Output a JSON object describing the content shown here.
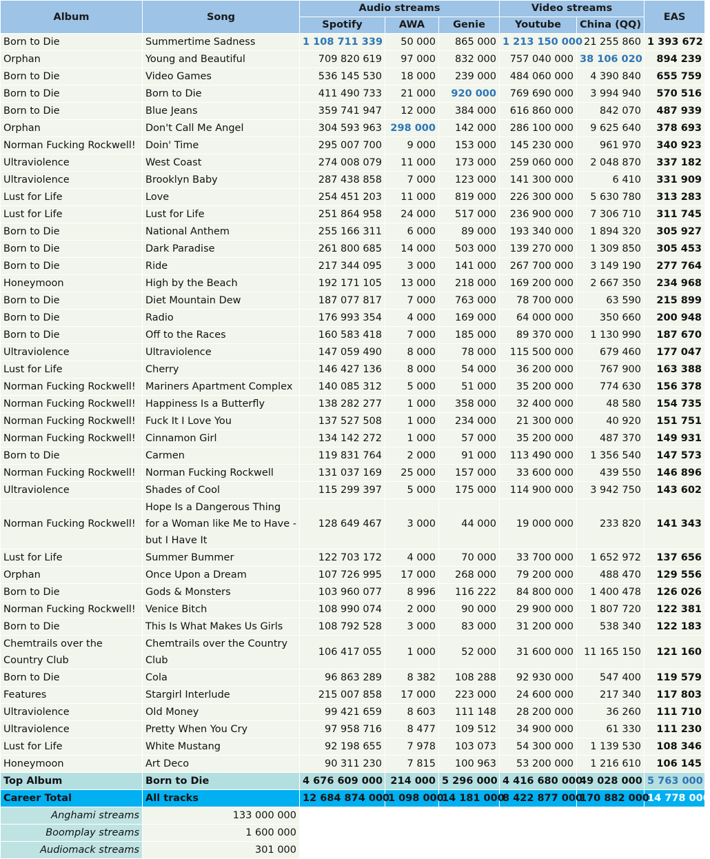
{
  "header": {
    "album": "Album",
    "song": "Song",
    "audio_streams": "Audio streams",
    "video_streams": "Video streams",
    "eas": "EAS",
    "spotify": "Spotify",
    "awa": "AWA",
    "genie": "Genie",
    "youtube": "Youtube",
    "china_qq": "China (QQ)"
  },
  "rows": [
    {
      "album": "Born to Die",
      "song": "Summertime Sadness",
      "spotify": "1 108 711 339",
      "awa": "50 000",
      "genie": "865 000",
      "youtube": "1 213 150 000",
      "qq": "21 255 860",
      "eas": "1 393 672",
      "hl": [
        "spotify",
        "youtube"
      ]
    },
    {
      "album": "Orphan",
      "song": "Young and Beautiful",
      "spotify": "709 820 619",
      "awa": "97 000",
      "genie": "832 000",
      "youtube": "757 040 000",
      "qq": "38 106 020",
      "eas": "894 239",
      "hl": [
        "qq"
      ]
    },
    {
      "album": "Born to Die",
      "song": "Video Games",
      "spotify": "536 145 530",
      "awa": "18 000",
      "genie": "239 000",
      "youtube": "484 060 000",
      "qq": "4 390 840",
      "eas": "655 759",
      "hl": []
    },
    {
      "album": "Born to Die",
      "song": "Born to Die",
      "spotify": "411 490 733",
      "awa": "21 000",
      "genie": "920 000",
      "youtube": "769 690 000",
      "qq": "3 994 940",
      "eas": "570 516",
      "hl": [
        "genie"
      ]
    },
    {
      "album": "Born to Die",
      "song": "Blue Jeans",
      "spotify": "359 741 947",
      "awa": "12 000",
      "genie": "384 000",
      "youtube": "616 860 000",
      "qq": "842 070",
      "eas": "487 939",
      "hl": []
    },
    {
      "album": "Orphan",
      "song": "Don't Call Me Angel",
      "spotify": "304 593 963",
      "awa": "298 000",
      "genie": "142 000",
      "youtube": "286 100 000",
      "qq": "9 625 640",
      "eas": "378 693",
      "hl": [
        "awa"
      ]
    },
    {
      "album": "Norman Fucking Rockwell!",
      "song": "Doin' Time",
      "spotify": "295 007 700",
      "awa": "9 000",
      "genie": "153 000",
      "youtube": "145 230 000",
      "qq": "961 970",
      "eas": "340 923",
      "hl": []
    },
    {
      "album": "Ultraviolence",
      "song": "West Coast",
      "spotify": "274 008 079",
      "awa": "11 000",
      "genie": "173 000",
      "youtube": "259 060 000",
      "qq": "2 048 870",
      "eas": "337 182",
      "hl": []
    },
    {
      "album": "Ultraviolence",
      "song": "Brooklyn Baby",
      "spotify": "287 438 858",
      "awa": "7 000",
      "genie": "123 000",
      "youtube": "141 300 000",
      "qq": "6 410",
      "eas": "331 909",
      "hl": []
    },
    {
      "album": "Lust for Life",
      "song": "Love",
      "spotify": "254 451 203",
      "awa": "11 000",
      "genie": "819 000",
      "youtube": "226 300 000",
      "qq": "5 630 780",
      "eas": "313 283",
      "hl": []
    },
    {
      "album": "Lust for Life",
      "song": "Lust for Life",
      "spotify": "251 864 958",
      "awa": "24 000",
      "genie": "517 000",
      "youtube": "236 900 000",
      "qq": "7 306 710",
      "eas": "311 745",
      "hl": []
    },
    {
      "album": "Born to Die",
      "song": "National Anthem",
      "spotify": "255 166 311",
      "awa": "6 000",
      "genie": "89 000",
      "youtube": "193 340 000",
      "qq": "1 894 320",
      "eas": "305 927",
      "hl": []
    },
    {
      "album": "Born to Die",
      "song": "Dark Paradise",
      "spotify": "261 800 685",
      "awa": "14 000",
      "genie": "503 000",
      "youtube": "139 270 000",
      "qq": "1 309 850",
      "eas": "305 453",
      "hl": []
    },
    {
      "album": "Born to Die",
      "song": "Ride",
      "spotify": "217 344 095",
      "awa": "3 000",
      "genie": "141 000",
      "youtube": "267 700 000",
      "qq": "3 149 190",
      "eas": "277 764",
      "hl": []
    },
    {
      "album": "Honeymoon",
      "song": "High by the Beach",
      "spotify": "192 171 105",
      "awa": "13 000",
      "genie": "218 000",
      "youtube": "169 200 000",
      "qq": "2 667 350",
      "eas": "234 968",
      "hl": []
    },
    {
      "album": "Born to Die",
      "song": "Diet Mountain Dew",
      "spotify": "187 077 817",
      "awa": "7 000",
      "genie": "763 000",
      "youtube": "78 700 000",
      "qq": "63 590",
      "eas": "215 899",
      "hl": []
    },
    {
      "album": "Born to Die",
      "song": "Radio",
      "spotify": "176 993 354",
      "awa": "4 000",
      "genie": "169 000",
      "youtube": "64 000 000",
      "qq": "350 660",
      "eas": "200 948",
      "hl": []
    },
    {
      "album": "Born to Die",
      "song": "Off to the Races",
      "spotify": "160 583 418",
      "awa": "7 000",
      "genie": "185 000",
      "youtube": "89 370 000",
      "qq": "1 130 990",
      "eas": "187 670",
      "hl": []
    },
    {
      "album": "Ultraviolence",
      "song": "Ultraviolence",
      "spotify": "147 059 490",
      "awa": "8 000",
      "genie": "78 000",
      "youtube": "115 500 000",
      "qq": "679 460",
      "eas": "177 047",
      "hl": []
    },
    {
      "album": "Lust for Life",
      "song": "Cherry",
      "spotify": "146 427 136",
      "awa": "8 000",
      "genie": "54 000",
      "youtube": "36 200 000",
      "qq": "767 900",
      "eas": "163 388",
      "hl": []
    },
    {
      "album": "Norman Fucking Rockwell!",
      "song": "Mariners Apartment Complex",
      "spotify": "140 085 312",
      "awa": "5 000",
      "genie": "51 000",
      "youtube": "35 200 000",
      "qq": "774 630",
      "eas": "156 378",
      "hl": []
    },
    {
      "album": "Norman Fucking Rockwell!",
      "song": "Happiness Is a Butterfly",
      "spotify": "138 282 277",
      "awa": "1 000",
      "genie": "358 000",
      "youtube": "32 400 000",
      "qq": "48 580",
      "eas": "154 735",
      "hl": []
    },
    {
      "album": "Norman Fucking Rockwell!",
      "song": "Fuck It I Love You",
      "spotify": "137 527 508",
      "awa": "1 000",
      "genie": "234 000",
      "youtube": "21 300 000",
      "qq": "40 920",
      "eas": "151 751",
      "hl": []
    },
    {
      "album": "Norman Fucking Rockwell!",
      "song": "Cinnamon Girl",
      "spotify": "134 142 272",
      "awa": "1 000",
      "genie": "57 000",
      "youtube": "35 200 000",
      "qq": "487 370",
      "eas": "149 931",
      "hl": []
    },
    {
      "album": "Born to Die",
      "song": "Carmen",
      "spotify": "119 831 764",
      "awa": "2 000",
      "genie": "91 000",
      "youtube": "113 490 000",
      "qq": "1 356 540",
      "eas": "147 573",
      "hl": []
    },
    {
      "album": "Norman Fucking Rockwell!",
      "song": "Norman Fucking Rockwell",
      "spotify": "131 037 169",
      "awa": "25 000",
      "genie": "157 000",
      "youtube": "33 600 000",
      "qq": "439 550",
      "eas": "146 896",
      "hl": []
    },
    {
      "album": "Ultraviolence",
      "song": "Shades of Cool",
      "spotify": "115 299 397",
      "awa": "5 000",
      "genie": "175 000",
      "youtube": "114 900 000",
      "qq": "3 942 750",
      "eas": "143 602",
      "hl": []
    },
    {
      "album": "Norman Fucking Rockwell!",
      "song": "Hope Is a Dangerous Thing for a Woman like Me to Have - but I Have It",
      "spotify": "128 649 467",
      "awa": "3 000",
      "genie": "44 000",
      "youtube": "19 000 000",
      "qq": "233 820",
      "eas": "141 343",
      "hl": [],
      "wrap": true
    },
    {
      "album": "Lust for Life",
      "song": "Summer Bummer",
      "spotify": "122 703 172",
      "awa": "4 000",
      "genie": "70 000",
      "youtube": "33 700 000",
      "qq": "1 652 972",
      "eas": "137 656",
      "hl": []
    },
    {
      "album": "Orphan",
      "song": "Once Upon a Dream",
      "spotify": "107 726 995",
      "awa": "17 000",
      "genie": "268 000",
      "youtube": "79 200 000",
      "qq": "488 470",
      "eas": "129 556",
      "hl": []
    },
    {
      "album": "Born to Die",
      "song": "Gods & Monsters",
      "spotify": "103 960 077",
      "awa": "8 996",
      "genie": "116 222",
      "youtube": "84 800 000",
      "qq": "1 400 478",
      "eas": "126 026",
      "hl": []
    },
    {
      "album": "Norman Fucking Rockwell!",
      "song": "Venice Bitch",
      "spotify": "108 990 074",
      "awa": "2 000",
      "genie": "90 000",
      "youtube": "29 900 000",
      "qq": "1 807 720",
      "eas": "122 381",
      "hl": []
    },
    {
      "album": "Born to Die",
      "song": "This Is What Makes Us Girls",
      "spotify": "108 792 528",
      "awa": "3 000",
      "genie": "83 000",
      "youtube": "31 200 000",
      "qq": "538 340",
      "eas": "122 183",
      "hl": []
    },
    {
      "album": "Chemtrails over the Country Club",
      "song": "Chemtrails over the Country Club",
      "spotify": "106 417 055",
      "awa": "1 000",
      "genie": "52 000",
      "youtube": "31 600 000",
      "qq": "11 165 150",
      "eas": "121 160",
      "hl": [],
      "wrap": true
    },
    {
      "album": "Born to Die",
      "song": "Cola",
      "spotify": "96 863 289",
      "awa": "8 382",
      "genie": "108 288",
      "youtube": "92 930 000",
      "qq": "547 400",
      "eas": "119 579",
      "hl": []
    },
    {
      "album": "Features",
      "song": "Stargirl Interlude",
      "spotify": "215 007 858",
      "awa": "17 000",
      "genie": "223 000",
      "youtube": "24 600 000",
      "qq": "217 340",
      "eas": "117 803",
      "hl": []
    },
    {
      "album": "Ultraviolence",
      "song": "Old Money",
      "spotify": "99 421 659",
      "awa": "8 603",
      "genie": "111 148",
      "youtube": "28 200 000",
      "qq": "36 260",
      "eas": "111 710",
      "hl": []
    },
    {
      "album": "Ultraviolence",
      "song": "Pretty When You Cry",
      "spotify": "97 958 716",
      "awa": "8 477",
      "genie": "109 512",
      "youtube": "34 900 000",
      "qq": "61 330",
      "eas": "111 230",
      "hl": []
    },
    {
      "album": "Lust for Life",
      "song": "White Mustang",
      "spotify": "92 198 655",
      "awa": "7 978",
      "genie": "103 073",
      "youtube": "54 300 000",
      "qq": "1 139 530",
      "eas": "108 346",
      "hl": []
    },
    {
      "album": "Honeymoon",
      "song": "Art Deco",
      "spotify": "90 311 230",
      "awa": "7 815",
      "genie": "100 963",
      "youtube": "53 200 000",
      "qq": "1 216 610",
      "eas": "106 145",
      "hl": []
    }
  ],
  "top_album": {
    "label": "Top Album",
    "name": "Born to Die",
    "spotify": "4 676 609 000",
    "awa": "214 000",
    "genie": "5 296 000",
    "youtube": "4 416 680 000",
    "qq": "49 028 000",
    "eas": "5 763 000"
  },
  "career_total": {
    "label": "Career Total",
    "name": "All tracks",
    "spotify": "12 684 874 000",
    "awa": "1 098 000",
    "genie": "14 181 000",
    "youtube": "8 422 877 000",
    "qq": "170 882 000",
    "eas": "14 778 000"
  },
  "extra_streams": [
    {
      "label": "Anghami streams",
      "value": "133 000 000"
    },
    {
      "label": "Boomplay streams",
      "value": "1 600 000"
    },
    {
      "label": "Audiomack streams",
      "value": "301 000"
    }
  ],
  "colors": {
    "header_bg": "#9dc3e6",
    "row_bg": "#f1f5ec",
    "highlight": "#2e75b6",
    "top_album_bg": "#b4dfe0",
    "career_bg": "#00b0f0"
  }
}
